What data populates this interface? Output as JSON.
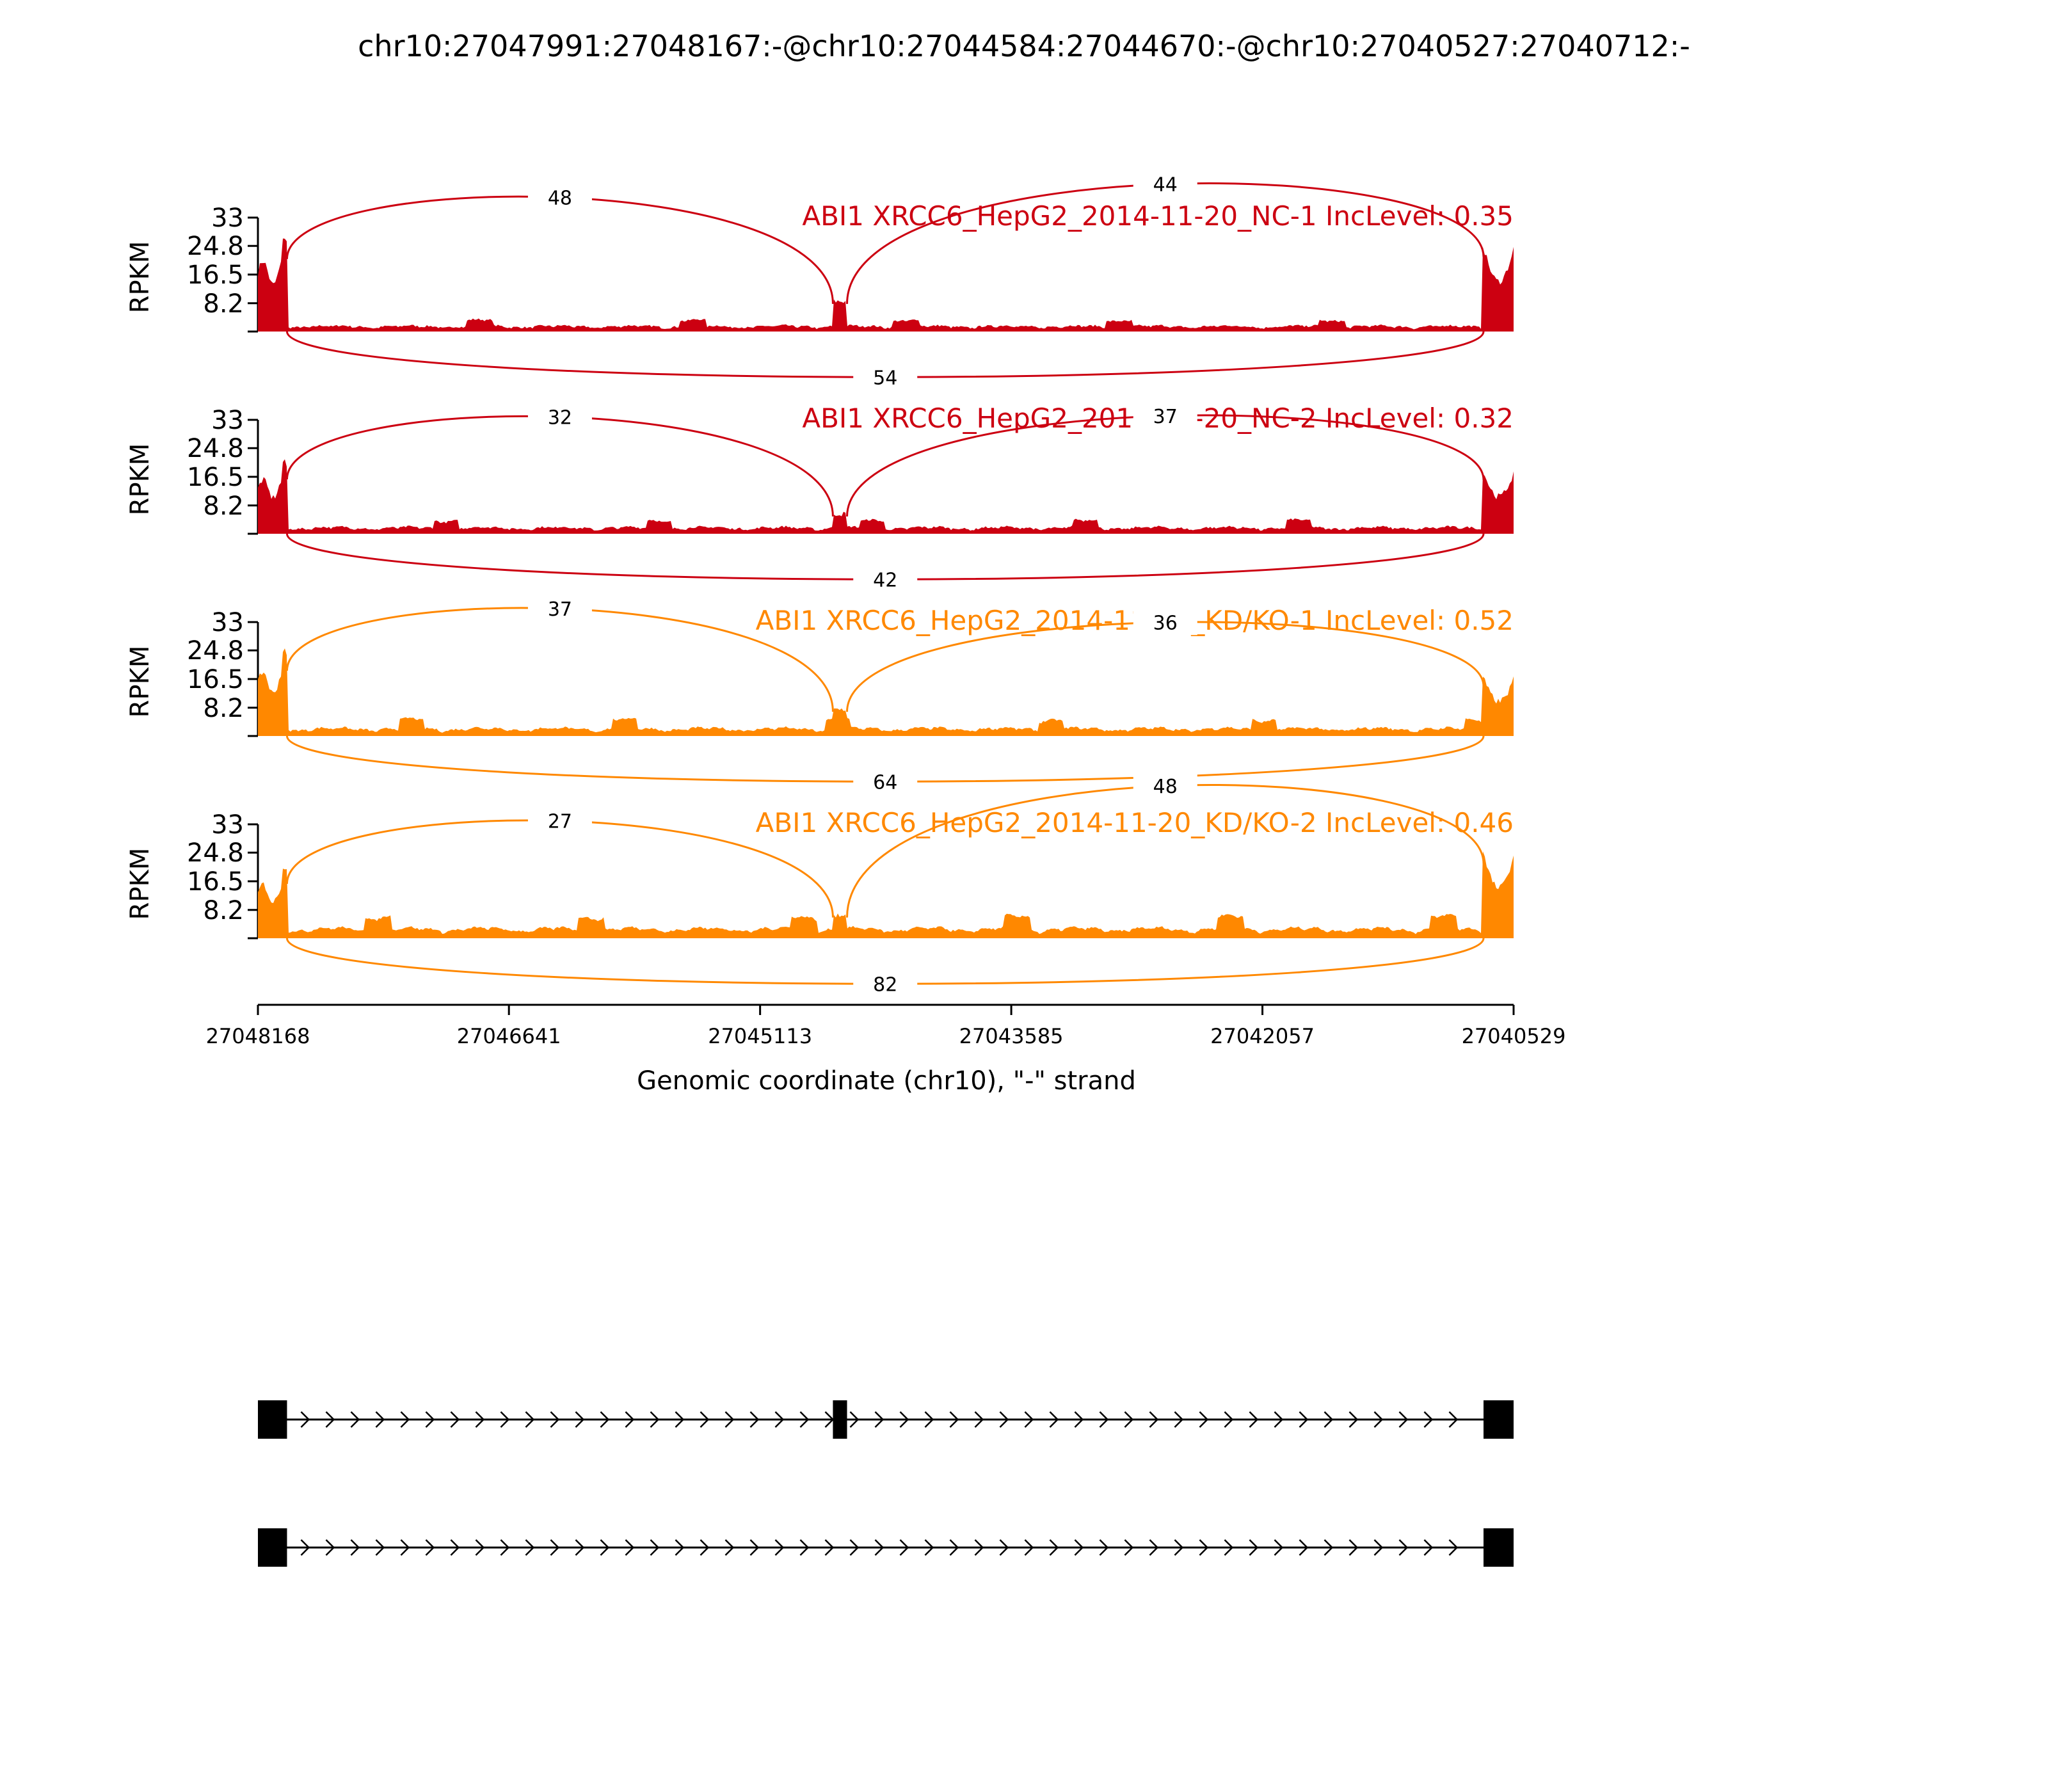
{
  "chart_data": {
    "type": "area",
    "title": "chr10:27047991:27048167:-@chr10:27044584:27044670:-@chr10:27040527:27040712:-",
    "xlabel": "Genomic coordinate (chr10), \"-\" strand",
    "ylabel": "RPKM",
    "x_ticks": [
      "27048168",
      "27046641",
      "27045113",
      "27043585",
      "27042057",
      "27040529"
    ],
    "xlim": [
      27048168,
      27040529
    ],
    "ylim": [
      0,
      33
    ],
    "y_ticks": [
      "33",
      "24.8",
      "16.5",
      "8.2"
    ],
    "exons": [
      {
        "start": 27048168,
        "end": 27047991
      },
      {
        "start": 27044670,
        "end": 27044584
      },
      {
        "start": 27040712,
        "end": 27040529
      }
    ],
    "series": [
      {
        "label": "ABI1 XRCC6_HepG2_2014-11-20_NC-1 IncLevel: 0.35",
        "color": "#cc0011",
        "junctions": {
          "upstream_to_middle": 48,
          "middle_to_downstream": 44,
          "skipping": 54
        },
        "exon_coverage": {
          "exon1": 20,
          "exon2": 8,
          "exon3": 18
        },
        "intron_coverage": 1
      },
      {
        "label": "ABI1 XRCC6_HepG2_2014-11-20_NC-2 IncLevel: 0.32",
        "color": "#cc0011",
        "junctions": {
          "upstream_to_middle": 32,
          "middle_to_downstream": 37,
          "skipping": 42
        },
        "exon_coverage": {
          "exon1": 15,
          "exon2": 5,
          "exon3": 13
        },
        "intron_coverage": 1.2
      },
      {
        "label": "ABI1 XRCC6_HepG2_2014-11-20_KD/KO-1 IncLevel: 0.52",
        "color": "#ff8800",
        "junctions": {
          "upstream_to_middle": 37,
          "middle_to_downstream": 36,
          "skipping": 64
        },
        "exon_coverage": {
          "exon1": 18,
          "exon2": 7,
          "exon3": 12
        },
        "intron_coverage": 1.5
      },
      {
        "label": "ABI1 XRCC6_HepG2_2014-11-20_KD/KO-2 IncLevel: 0.46",
        "color": "#ff8800",
        "junctions": {
          "upstream_to_middle": 27,
          "middle_to_downstream": 48,
          "skipping": 82
        },
        "exon_coverage": {
          "exon1": 15,
          "exon2": 6,
          "exon3": 18
        },
        "intron_coverage": 2
      }
    ],
    "isoforms": [
      {
        "exons": [
          0,
          1,
          2
        ]
      },
      {
        "exons": [
          0,
          2
        ]
      }
    ]
  }
}
